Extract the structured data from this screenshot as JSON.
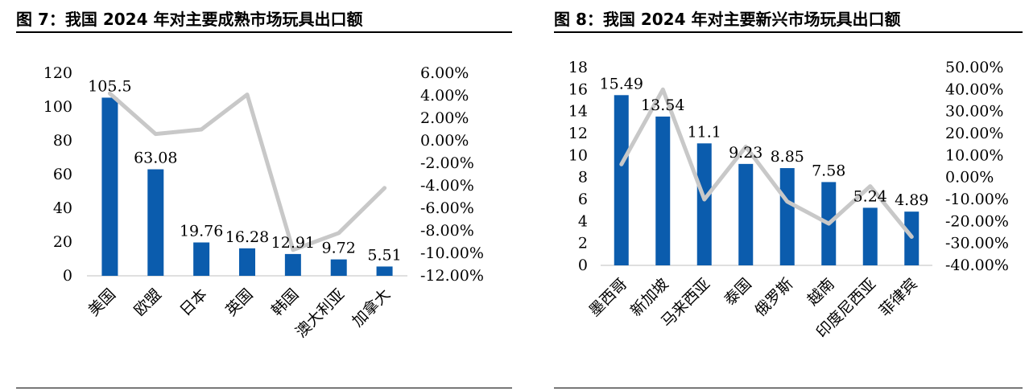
{
  "charts": [
    {
      "figure_title": "图  7：我国 2024 年对主要成熟市场玩具出口额",
      "chart_data": {
        "type": "bar",
        "categories": [
          "美国",
          "欧盟",
          "日本",
          "英国",
          "韩国",
          "澳大利亚",
          "加拿大"
        ],
        "series": [
          {
            "type": "bar",
            "axis": "left",
            "color": "#0b5cad",
            "values": [
              105.5,
              63.08,
              19.76,
              16.28,
              12.91,
              9.72,
              5.51
            ]
          },
          {
            "type": "line",
            "axis": "right",
            "color": "#c8c8c8",
            "values": [
              4.2,
              0.6,
              1.0,
              4.1,
              -9.7,
              -8.2,
              -4.2
            ]
          }
        ],
        "value_labels": [
          "105.5",
          "63.08",
          "19.76",
          "16.28",
          "12.91",
          "9.72",
          "5.51"
        ],
        "y_left": {
          "min": 0,
          "max": 120,
          "ticks": [
            "0",
            "20",
            "40",
            "60",
            "80",
            "100",
            "120"
          ]
        },
        "y_right": {
          "min": -12,
          "max": 6,
          "ticks": [
            "-12.00%",
            "-10.00%",
            "-8.00%",
            "-6.00%",
            "-4.00%",
            "-2.00%",
            "0.00%",
            "2.00%",
            "4.00%",
            "6.00%"
          ]
        },
        "grid": false,
        "legend": "none"
      }
    },
    {
      "figure_title": "图  8：我国 2024 年对主要新兴市场玩具出口额",
      "chart_data": {
        "type": "bar",
        "categories": [
          "墨西哥",
          "新加坡",
          "马来西亚",
          "泰国",
          "俄罗斯",
          "越南",
          "印度尼西亚",
          "菲律宾"
        ],
        "series": [
          {
            "type": "bar",
            "axis": "left",
            "color": "#0b5cad",
            "values": [
              15.49,
              13.54,
              11.1,
              9.23,
              8.85,
              7.58,
              5.24,
              4.89
            ]
          },
          {
            "type": "line",
            "axis": "right",
            "color": "#c8c8c8",
            "values": [
              6,
              40,
              -10,
              14,
              -11,
              -21,
              -4,
              -27
            ]
          }
        ],
        "value_labels": [
          "15.49",
          "13.54",
          "11.1",
          "9.23",
          "8.85",
          "7.58",
          "5.24",
          "4.89"
        ],
        "y_left": {
          "min": 0,
          "max": 18,
          "ticks": [
            "0",
            "2",
            "4",
            "6",
            "8",
            "10",
            "12",
            "14",
            "16",
            "18"
          ]
        },
        "y_right": {
          "min": -40,
          "max": 50,
          "ticks": [
            "-40.00%",
            "-30.00%",
            "-20.00%",
            "-10.00%",
            "0.00%",
            "10.00%",
            "20.00%",
            "30.00%",
            "40.00%",
            "50.00%"
          ]
        },
        "grid": false,
        "legend": "none"
      }
    }
  ]
}
